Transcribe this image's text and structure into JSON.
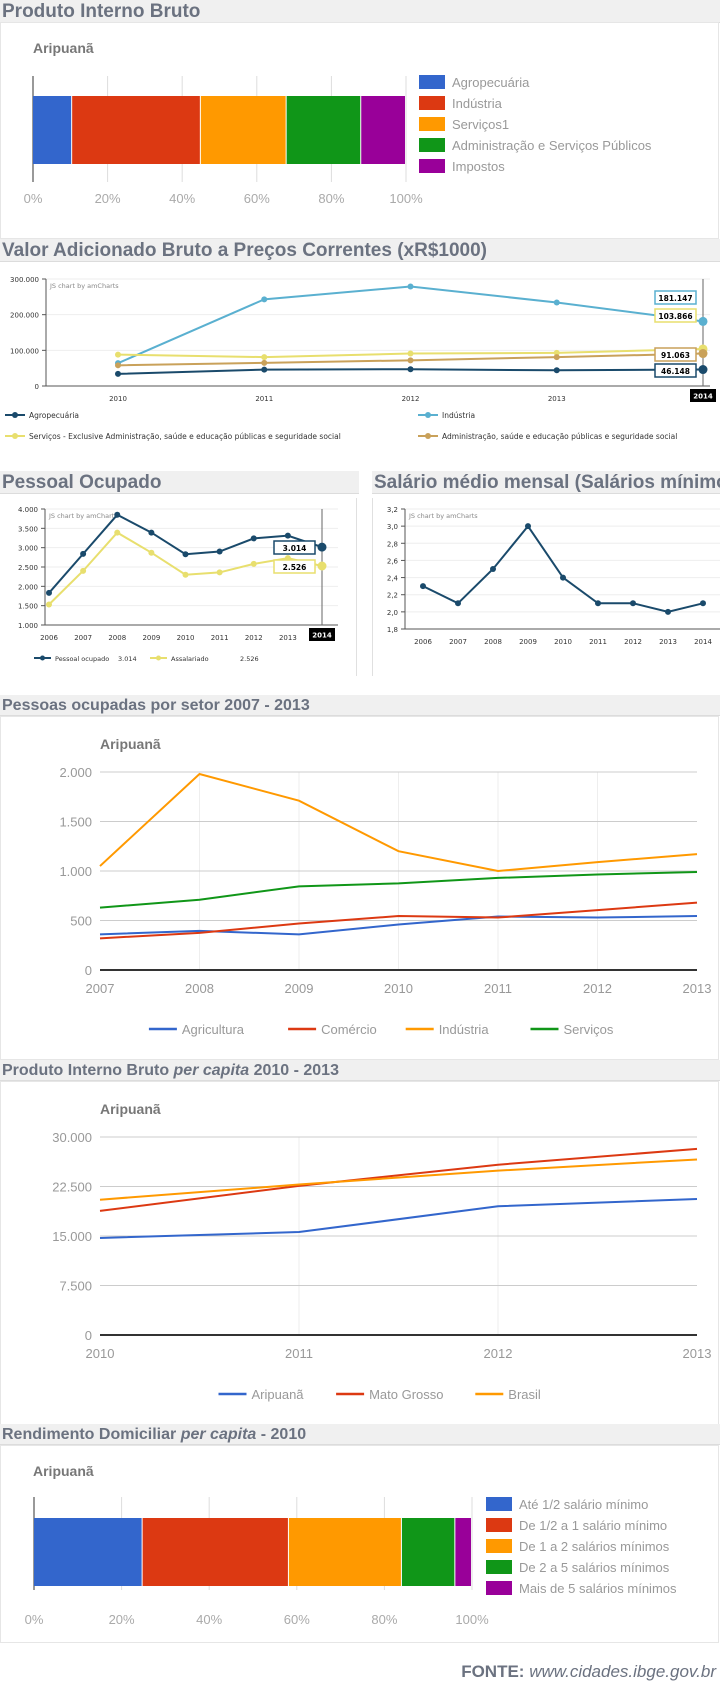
{
  "sections": {
    "pib": {
      "title": "Produto Interno Bruto"
    },
    "vab": {
      "title": "Valor Adicionado Bruto a Preços Correntes (xR$1000)"
    },
    "pessoal": {
      "title": "Pessoal Ocupado"
    },
    "salario": {
      "title": "Salário médio mensal (Salários mínimos)"
    },
    "setor": {
      "title": "Pessoas ocupadas por setor 2007 - 2013"
    },
    "pibpc": {
      "title_pre": "Produto Interno Bruto ",
      "title_em": "per capita",
      "title_post": " 2010 - 2013"
    },
    "rend": {
      "title_pre": "Rendimento Domiciliar ",
      "title_em": "per capita",
      "title_post": " - 2010"
    }
  },
  "footer": {
    "label": "FONTE:",
    "url": "www.cidades.ibge.gov.br"
  },
  "chart_data": [
    {
      "id": "pib",
      "type": "bar",
      "stacked": "percent",
      "orientation": "horizontal",
      "title": "Aripuanã",
      "categories": [
        "Aripuanã"
      ],
      "series": [
        {
          "name": "Agropecuária",
          "value": 10.5,
          "color": "#3366cc"
        },
        {
          "name": "Indústria",
          "value": 34.5,
          "color": "#dc3912"
        },
        {
          "name": "Serviços1",
          "value": 23.0,
          "color": "#ff9900"
        },
        {
          "name": "Administração e Serviços Públicos",
          "value": 20.0,
          "color": "#109618"
        },
        {
          "name": "Impostos",
          "value": 12.0,
          "color": "#990099"
        }
      ],
      "xticks": [
        "0%",
        "20%",
        "40%",
        "60%",
        "80%",
        "100%"
      ],
      "xlim": [
        0,
        100
      ],
      "legend": "right"
    },
    {
      "id": "vab",
      "type": "line",
      "watermark": "JS chart by amCharts",
      "x": [
        "2010",
        "2011",
        "2012",
        "2013",
        "2014"
      ],
      "ylim": [
        0,
        300000
      ],
      "yticks": [
        "0",
        "100.000",
        "200.000",
        "300.000"
      ],
      "cursor_label": "2014",
      "series": [
        {
          "name": "Agropecuária",
          "color": "#1a4a6b",
          "values": [
            34000,
            46000,
            47000,
            44000,
            46148
          ],
          "label": "46.148"
        },
        {
          "name": "Indústria",
          "color": "#5ab0d0",
          "values": [
            64000,
            243000,
            279000,
            234000,
            181147
          ],
          "label": "181.147"
        },
        {
          "name": "Serviços - Exclusive Administração, saúde e educação públicas e seguridade social",
          "color": "#e8df6e",
          "values": [
            88000,
            81000,
            91000,
            93000,
            103866
          ],
          "label": "103.866"
        },
        {
          "name": "Administração, saúde e educação públicas e seguridade social",
          "color": "#c9a15a",
          "values": [
            58000,
            65000,
            72000,
            81000,
            91063
          ],
          "label": "91.063"
        }
      ],
      "legend": "bottom"
    },
    {
      "id": "pessoal",
      "type": "line",
      "watermark": "JS chart by amCharts",
      "x": [
        "2006",
        "2007",
        "2008",
        "2009",
        "2010",
        "2011",
        "2012",
        "2013",
        "2014"
      ],
      "ylim": [
        1000,
        4000
      ],
      "yticks": [
        "1.000",
        "1.500",
        "2.000",
        "2.500",
        "3.000",
        "3.500",
        "4.000"
      ],
      "cursor_label": "2014",
      "series": [
        {
          "name": "Pessoal ocupado",
          "color": "#1a4a6b",
          "values": [
            1830,
            2840,
            3850,
            3390,
            2830,
            2900,
            3240,
            3310,
            3014
          ],
          "label": "3.014"
        },
        {
          "name": "Assalariado",
          "color": "#e8df6e",
          "values": [
            1530,
            2400,
            3390,
            2870,
            2300,
            2360,
            2580,
            2730,
            2526
          ],
          "label": "2.526"
        }
      ],
      "legend": "bottom"
    },
    {
      "id": "salario",
      "type": "line",
      "watermark": "JS chart by amCharts",
      "x": [
        "2006",
        "2007",
        "2008",
        "2009",
        "2010",
        "2011",
        "2012",
        "2013",
        "2014"
      ],
      "ylim": [
        1.8,
        3.2
      ],
      "yticks": [
        "1,8",
        "2,0",
        "2,2",
        "2,4",
        "2,6",
        "2,8",
        "3,0",
        "3,2"
      ],
      "series": [
        {
          "name": "Salário médio mensal",
          "color": "#1a4a6b",
          "values": [
            2.3,
            2.1,
            2.5,
            3.0,
            2.4,
            2.1,
            2.1,
            2.0,
            2.1
          ]
        }
      ]
    },
    {
      "id": "setor",
      "type": "line",
      "title": "Aripuanã",
      "x": [
        "2007",
        "2008",
        "2009",
        "2010",
        "2011",
        "2012",
        "2013"
      ],
      "ylim": [
        0,
        2000
      ],
      "yticks": [
        "0",
        "500",
        "1.000",
        "1.500",
        "2.000"
      ],
      "series": [
        {
          "name": "Agricultura",
          "color": "#3366cc",
          "values": [
            360,
            395,
            360,
            460,
            540,
            530,
            545
          ]
        },
        {
          "name": "Comércio",
          "color": "#dc3912",
          "values": [
            320,
            375,
            470,
            545,
            530,
            605,
            680
          ]
        },
        {
          "name": "Indústria",
          "color": "#ff9900",
          "values": [
            1050,
            1980,
            1710,
            1200,
            1000,
            1090,
            1170
          ]
        },
        {
          "name": "Serviços",
          "color": "#109618",
          "values": [
            630,
            710,
            845,
            875,
            930,
            965,
            990
          ]
        }
      ],
      "legend": "bottom"
    },
    {
      "id": "pibpc",
      "type": "line",
      "title": "Aripuanã",
      "x": [
        "2010",
        "2011",
        "2012",
        "2013"
      ],
      "ylim": [
        0,
        30000
      ],
      "yticks": [
        "0",
        "7.500",
        "15.000",
        "22.500",
        "30.000"
      ],
      "series": [
        {
          "name": "Aripuanã",
          "color": "#3366cc",
          "values": [
            14700,
            15600,
            19500,
            20600
          ]
        },
        {
          "name": "Mato Grosso",
          "color": "#dc3912",
          "values": [
            18800,
            22600,
            25800,
            28200
          ]
        },
        {
          "name": "Brasil",
          "color": "#ff9900",
          "values": [
            20500,
            22800,
            24900,
            26600
          ]
        }
      ],
      "legend": "bottom"
    },
    {
      "id": "rend",
      "type": "bar",
      "stacked": "percent",
      "orientation": "horizontal",
      "title": "Aripuanã",
      "categories": [
        "Aripuanã"
      ],
      "series": [
        {
          "name": "Até 1/2 salário mínimo",
          "value": 24.8,
          "color": "#3366cc"
        },
        {
          "name": "De 1/2 a 1 salário mínimo",
          "value": 33.4,
          "color": "#dc3912"
        },
        {
          "name": "De 1 a 2 salários mínimos",
          "value": 25.8,
          "color": "#ff9900"
        },
        {
          "name": "De 2 a 5 salários mínimos",
          "value": 12.2,
          "color": "#109618"
        },
        {
          "name": "Mais de 5 salários mínimos",
          "value": 3.8,
          "color": "#990099"
        }
      ],
      "xticks": [
        "0%",
        "20%",
        "40%",
        "60%",
        "80%",
        "100%"
      ],
      "xlim": [
        0,
        100
      ],
      "legend": "right"
    }
  ]
}
